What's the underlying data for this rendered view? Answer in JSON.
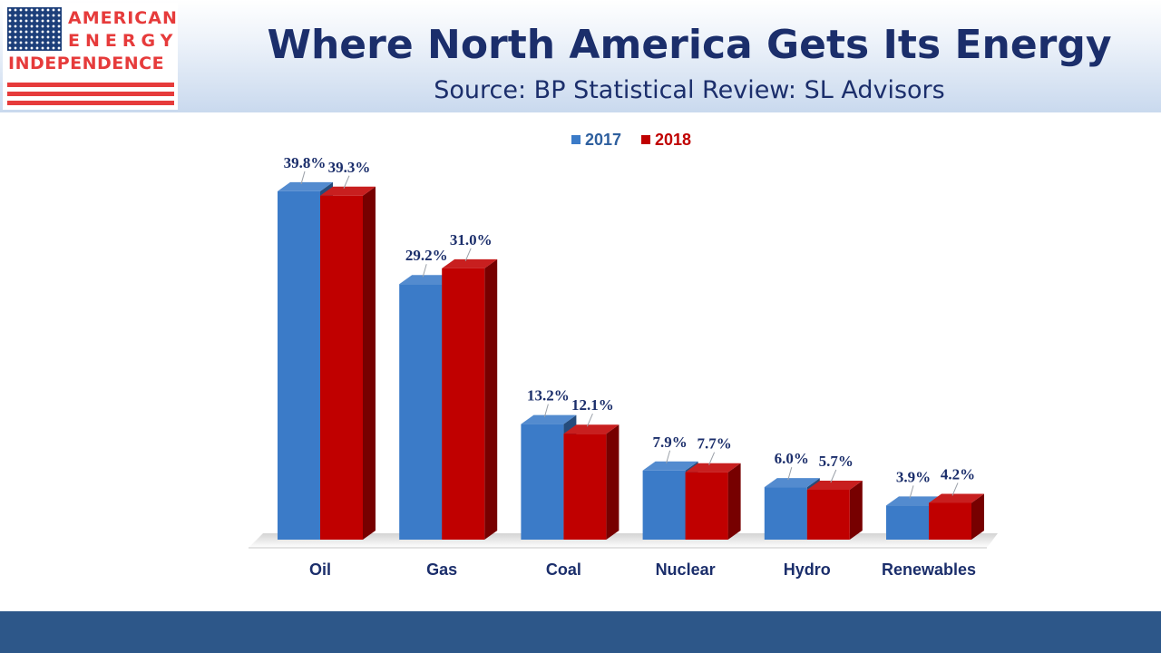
{
  "header": {
    "title": "Where North America Gets Its Energy",
    "subtitle": "Source: BP Statistical Review: SL Advisors"
  },
  "logo": {
    "line1": "AMERICAN",
    "line2": "ENERGY",
    "line3": "INDEPENDENCE",
    "colors": {
      "red": "#e63b3b",
      "blue": "#1d3f7a"
    }
  },
  "chart_data": {
    "type": "bar",
    "categories": [
      "Oil",
      "Gas",
      "Coal",
      "Nuclear",
      "Hydro",
      "Renewables"
    ],
    "series": [
      {
        "name": "2017",
        "values": [
          39.8,
          29.2,
          13.2,
          7.9,
          6.0,
          3.9
        ],
        "labels": [
          "39.8%",
          "29.2%",
          "13.2%",
          "7.9%",
          "6.0%",
          "3.9%"
        ],
        "color": "#3b7bc8"
      },
      {
        "name": "2018",
        "values": [
          39.3,
          31.0,
          12.1,
          7.7,
          5.7,
          4.2
        ],
        "labels": [
          "39.3%",
          "31.0%",
          "12.1%",
          "7.7%",
          "5.7%",
          "4.2%"
        ],
        "color": "#c00000"
      }
    ],
    "ylim": [
      0,
      40
    ],
    "grid": false,
    "style": "3d-clustered-column",
    "legend_position": "top-center",
    "colors": {
      "label_text": "#1b2e6b",
      "legend_2018_text": "#c00000",
      "legend_2017_text": "#2e5f9e"
    }
  },
  "footer": {
    "color": "#2d5789"
  }
}
